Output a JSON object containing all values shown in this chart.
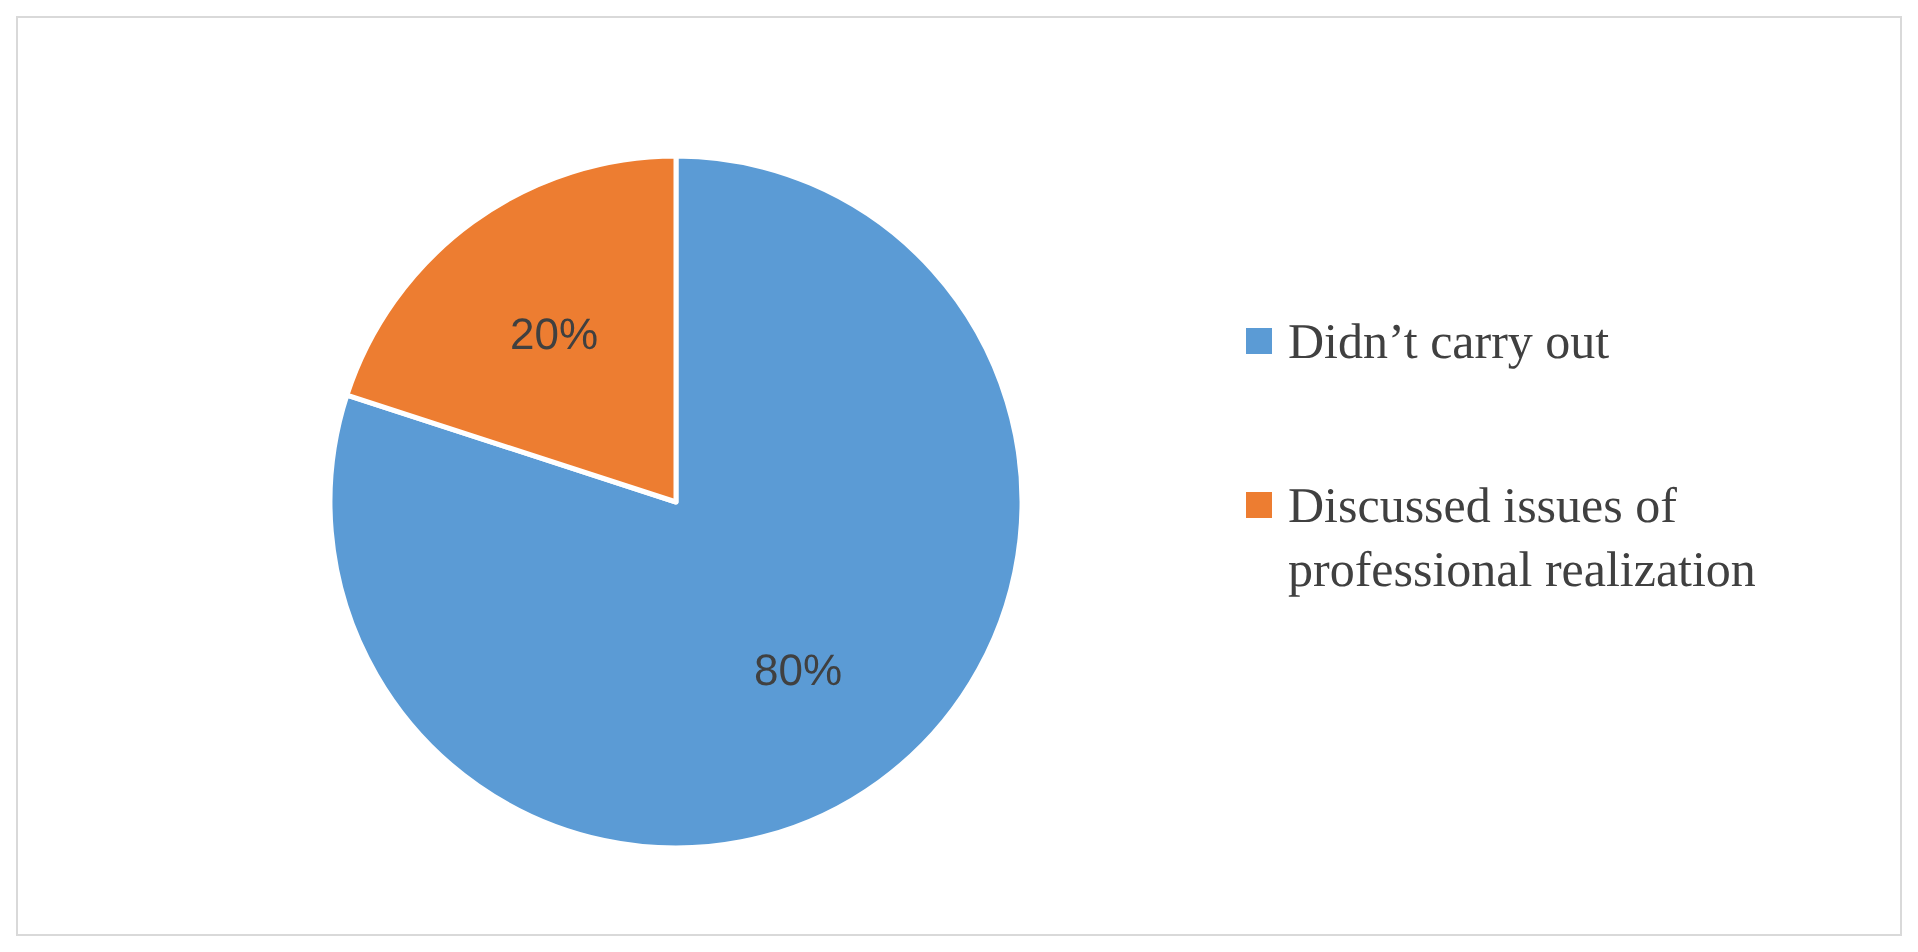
{
  "chart_data": {
    "type": "pie",
    "categories": [
      "Didn’t carry out",
      "Discussed issues of professional realization"
    ],
    "values": [
      80,
      20
    ],
    "colors": [
      "#5b9bd5",
      "#ed7d31"
    ],
    "value_labels": [
      "80%",
      "20%"
    ],
    "legend": "right"
  }
}
